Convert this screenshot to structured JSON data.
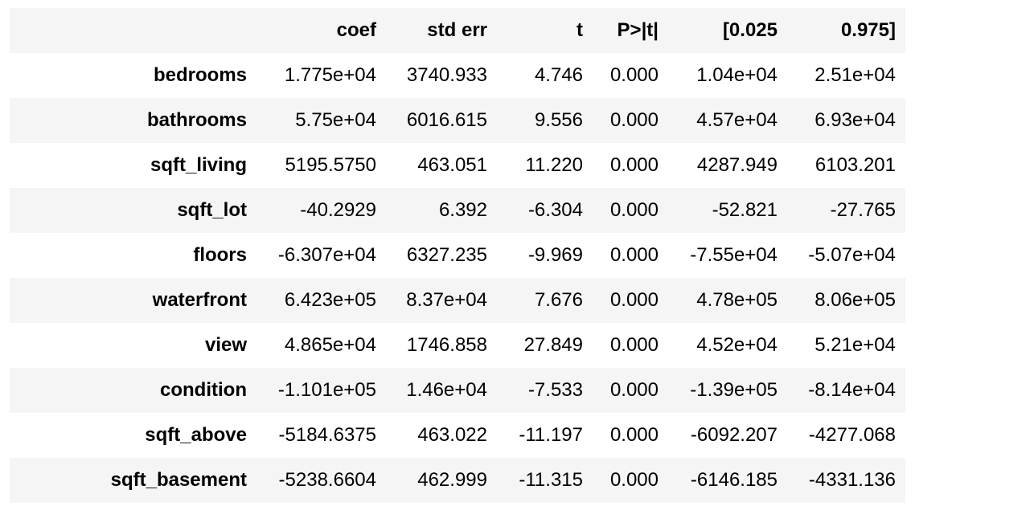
{
  "table": {
    "columns": [
      "",
      "coef",
      "std err",
      "t",
      "P>|t|",
      "[0.025",
      "0.975]"
    ],
    "rows": [
      {
        "label": "bedrooms",
        "values": [
          "1.775e+04",
          "3740.933",
          "4.746",
          "0.000",
          "1.04e+04",
          "2.51e+04"
        ]
      },
      {
        "label": "bathrooms",
        "values": [
          "5.75e+04",
          "6016.615",
          "9.556",
          "0.000",
          "4.57e+04",
          "6.93e+04"
        ]
      },
      {
        "label": "sqft_living",
        "values": [
          "5195.5750",
          "463.051",
          "11.220",
          "0.000",
          "4287.949",
          "6103.201"
        ]
      },
      {
        "label": "sqft_lot",
        "values": [
          "-40.2929",
          "6.392",
          "-6.304",
          "0.000",
          "-52.821",
          "-27.765"
        ]
      },
      {
        "label": "floors",
        "values": [
          "-6.307e+04",
          "6327.235",
          "-9.969",
          "0.000",
          "-7.55e+04",
          "-5.07e+04"
        ]
      },
      {
        "label": "waterfront",
        "values": [
          "6.423e+05",
          "8.37e+04",
          "7.676",
          "0.000",
          "4.78e+05",
          "8.06e+05"
        ]
      },
      {
        "label": "view",
        "values": [
          "4.865e+04",
          "1746.858",
          "27.849",
          "0.000",
          "4.52e+04",
          "5.21e+04"
        ]
      },
      {
        "label": "condition",
        "values": [
          "-1.101e+05",
          "1.46e+04",
          "-7.533",
          "0.000",
          "-1.39e+05",
          "-8.14e+04"
        ]
      },
      {
        "label": "sqft_above",
        "values": [
          "-5184.6375",
          "463.022",
          "-11.197",
          "0.000",
          "-6092.207",
          "-4277.068"
        ]
      },
      {
        "label": "sqft_basement",
        "values": [
          "-5238.6604",
          "462.999",
          "-11.315",
          "0.000",
          "-6146.185",
          "-4331.136"
        ]
      }
    ]
  }
}
